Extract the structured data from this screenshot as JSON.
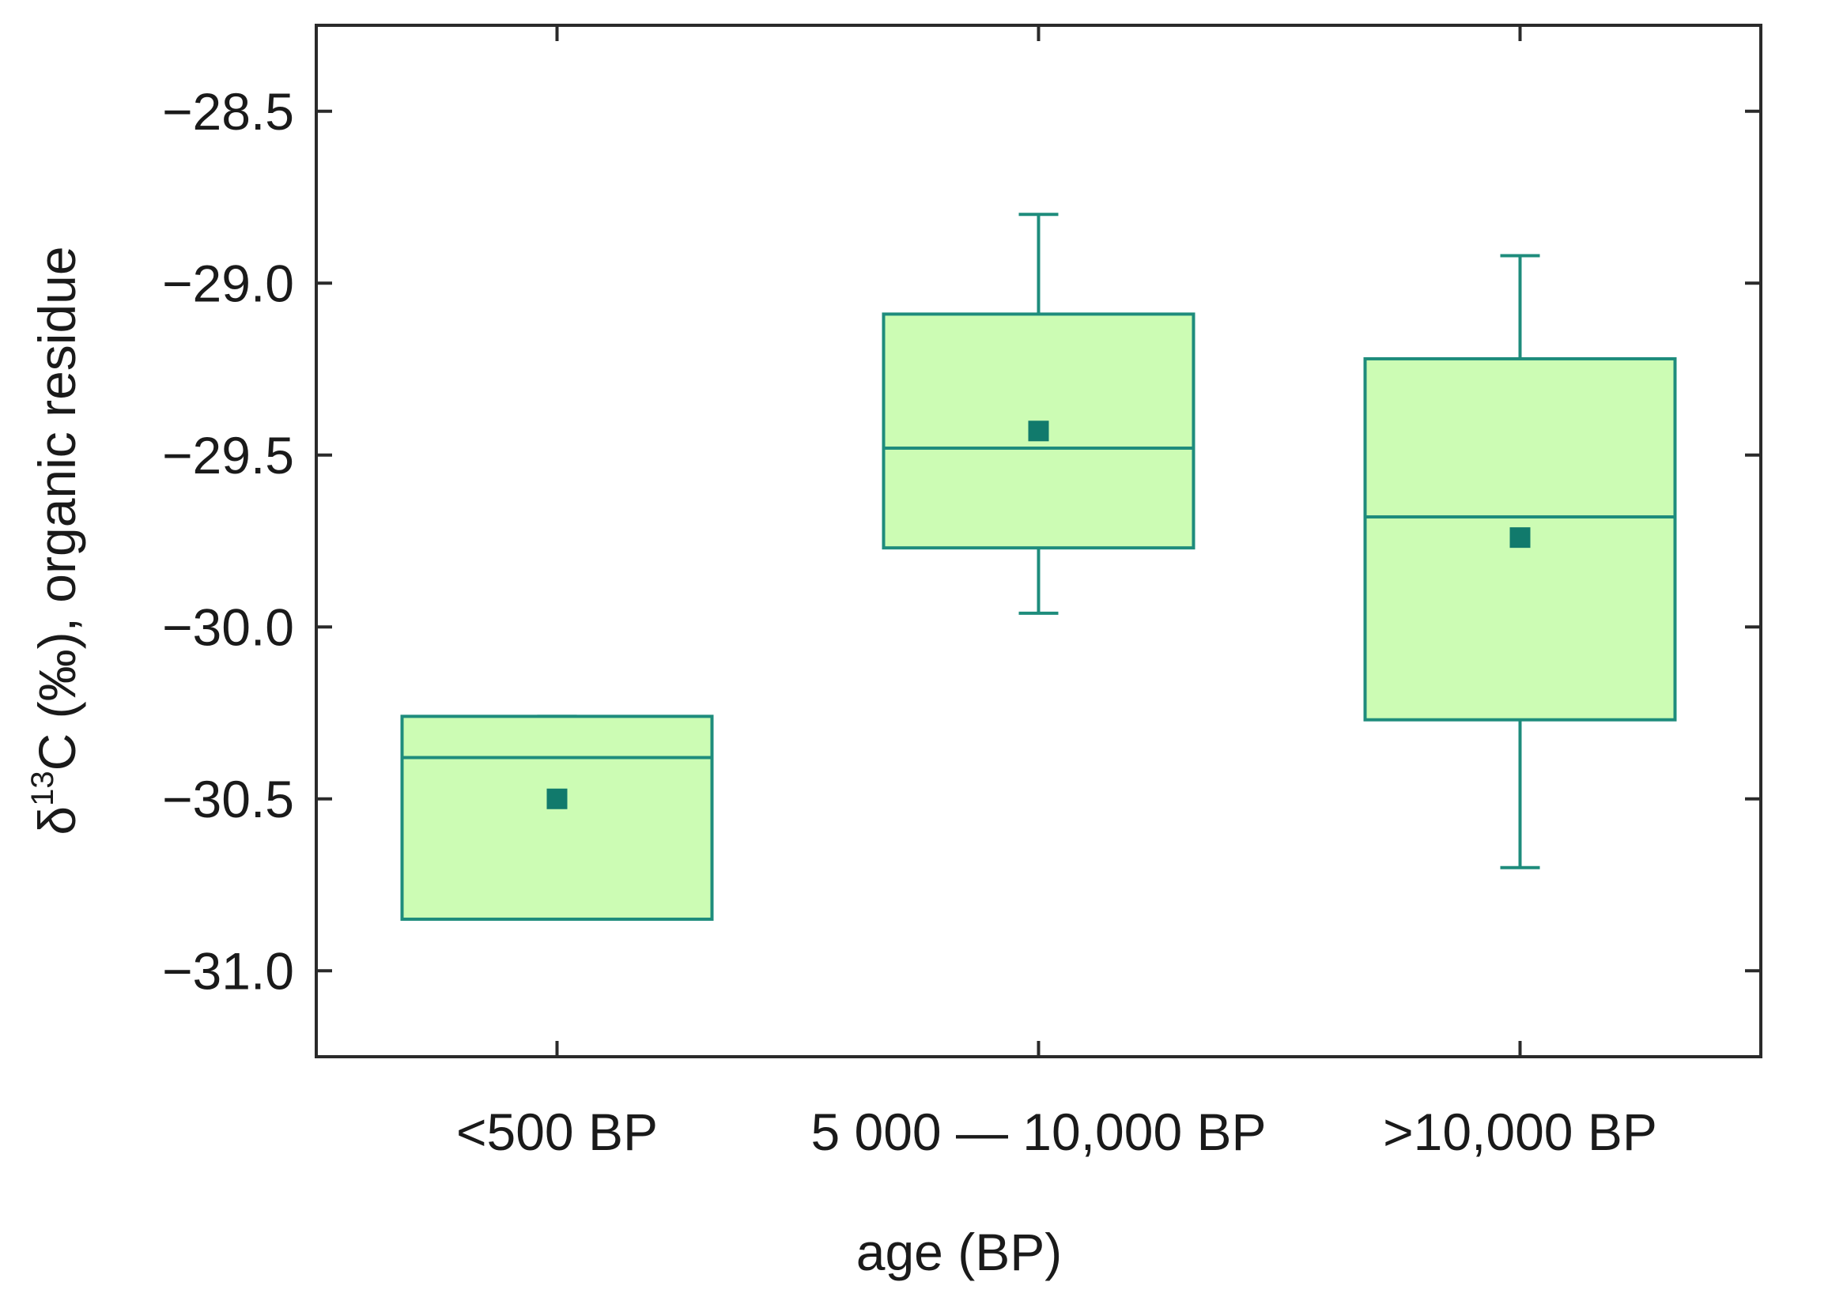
{
  "chart_data": {
    "type": "box",
    "xlabel": "age (BP)",
    "ylabel": {
      "prefix": "δ",
      "superscript": "13",
      "suffix": "C (‰), organic residue"
    },
    "ylim": [
      -31.25,
      -28.25
    ],
    "yticks": [
      -28.5,
      -29.0,
      -29.5,
      -30.0,
      -30.5,
      -31.0
    ],
    "ytick_labels": [
      "−28.5",
      "−29.0",
      "−29.5",
      "−30.0",
      "−30.5",
      "−31.0"
    ],
    "categories": [
      "<500 BP",
      "5 000 — 10,000 BP",
      ">10,000 BP"
    ],
    "boxes": [
      {
        "category": "<500 BP",
        "whisker_low": -30.85,
        "q1": -30.85,
        "median": -30.38,
        "q3": -30.26,
        "whisker_high": -30.26,
        "mean": -30.5
      },
      {
        "category": "5 000 — 10,000 BP",
        "whisker_low": -29.96,
        "q1": -29.77,
        "median": -29.48,
        "q3": -29.09,
        "whisker_high": -28.8,
        "mean": -29.43
      },
      {
        "category": ">10,000 BP",
        "whisker_low": -30.7,
        "q1": -30.27,
        "median": -29.68,
        "q3": -29.22,
        "whisker_high": -28.92,
        "mean": -29.74
      }
    ],
    "colors": {
      "box_fill": "#ccfcb4",
      "box_stroke": "#1e8c7c",
      "mean_marker": "#117a6c",
      "axis": "#2a2a2a"
    }
  }
}
